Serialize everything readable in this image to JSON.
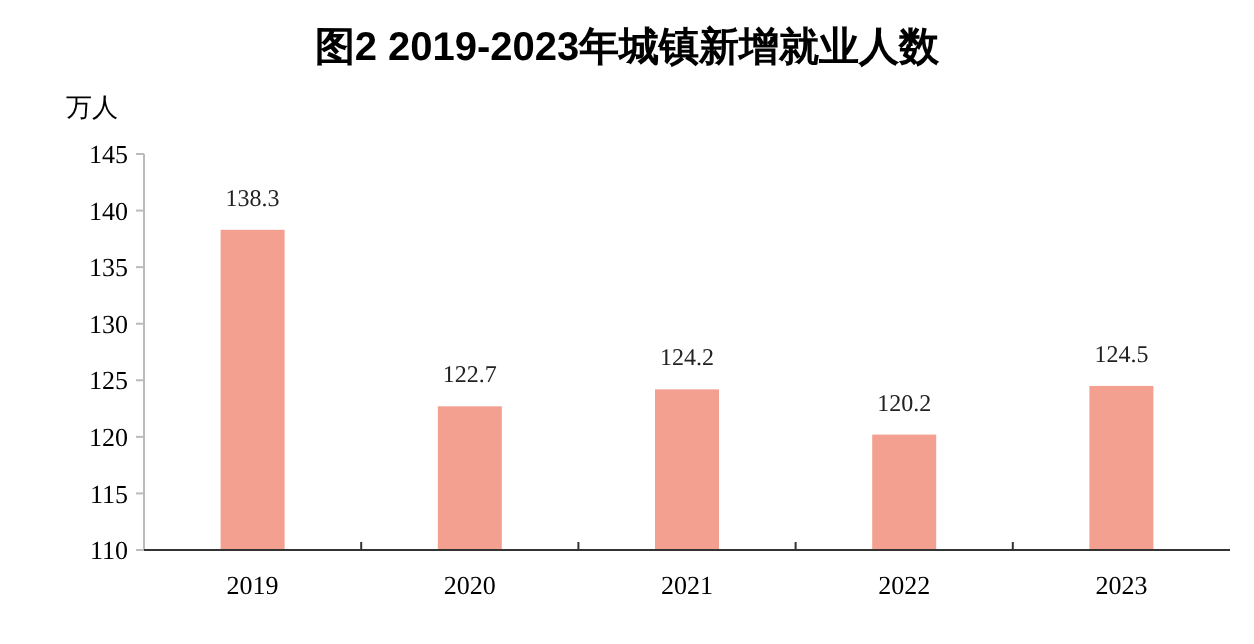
{
  "chart_data": {
    "type": "bar",
    "title": "图2 2019-2023年城镇新增就业人数",
    "ylabel": "万人",
    "categories": [
      "2019",
      "2020",
      "2021",
      "2022",
      "2023"
    ],
    "values": [
      138.3,
      122.7,
      124.2,
      120.2,
      124.5
    ],
    "color": "#f4a090",
    "ylim": [
      110,
      145
    ],
    "yticks": [
      110,
      115,
      120,
      125,
      130,
      135,
      140,
      145
    ],
    "grid": false,
    "data_labels": true
  }
}
